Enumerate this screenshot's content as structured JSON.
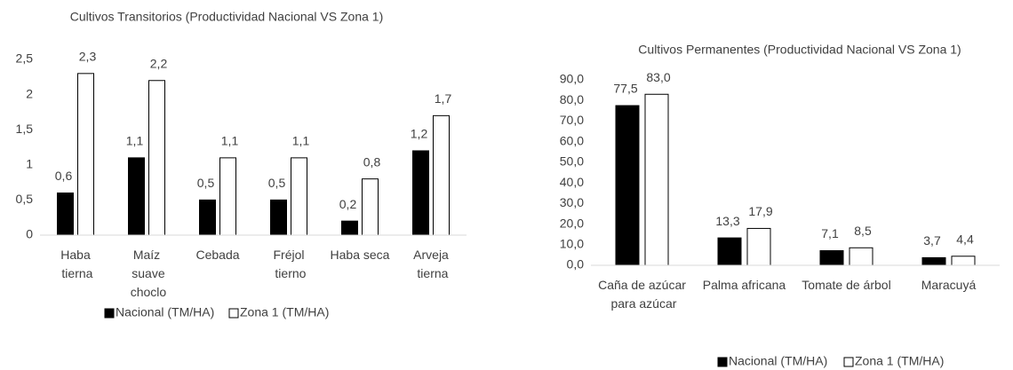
{
  "chart_data": [
    {
      "type": "bar",
      "title": "Cultivos Transitorios (Productividad Nacional VS Zona 1)",
      "categories": [
        "Haba tierna",
        "Maíz suave choclo",
        "Cebada",
        "Fréjol tierno",
        "Haba seca",
        "Arveja tierna"
      ],
      "series": [
        {
          "name": "Nacional (TM/HA)",
          "color": "#000000",
          "values": [
            0.6,
            1.1,
            0.5,
            0.5,
            0.2,
            1.2
          ],
          "value_labels": [
            "0,6",
            "1,1",
            "0,5",
            "0,5",
            "0,2",
            "1,2"
          ]
        },
        {
          "name": "Zona 1 (TM/HA)",
          "color": "#ffffff",
          "values": [
            2.3,
            2.2,
            1.1,
            1.1,
            0.8,
            1.7
          ],
          "value_labels": [
            "2,3",
            "2,2",
            "1,1",
            "1,1",
            "0,8",
            "1,7"
          ]
        }
      ],
      "ylim": [
        0,
        2.5
      ],
      "yticks": [
        0,
        {
          "value": 0.5,
          "label": "0,5"
        },
        1,
        {
          "value": 1.5,
          "label": "1,5"
        },
        2,
        {
          "value": 2.5,
          "label": "2,5"
        }
      ],
      "legend": "bottom"
    },
    {
      "type": "bar",
      "title": "Cultivos Permanentes (Productividad Nacional VS Zona 1)",
      "categories": [
        "Caña de azúcar para azúcar",
        "Palma africana",
        "Tomate de árbol",
        "Maracuyá"
      ],
      "series": [
        {
          "name": "Nacional (TM/HA)",
          "color": "#000000",
          "values": [
            77.5,
            13.3,
            7.1,
            3.7
          ],
          "value_labels": [
            "77,5",
            "13,3",
            "7,1",
            "3,7"
          ]
        },
        {
          "name": "Zona 1 (TM/HA)",
          "color": "#ffffff",
          "values": [
            83.0,
            17.9,
            8.5,
            4.4
          ],
          "value_labels": [
            "83,0",
            "17,9",
            "8,5",
            "4,4"
          ]
        }
      ],
      "ylim": [
        0,
        90
      ],
      "yticks": [
        {
          "value": 0,
          "label": "0,0"
        },
        {
          "value": 10,
          "label": "10,0"
        },
        {
          "value": 20,
          "label": "20,0"
        },
        {
          "value": 30,
          "label": "30,0"
        },
        {
          "value": 40,
          "label": "40,0"
        },
        {
          "value": 50,
          "label": "50,0"
        },
        {
          "value": 60,
          "label": "60,0"
        },
        {
          "value": 70,
          "label": "70,0"
        },
        {
          "value": 80,
          "label": "80,0"
        },
        {
          "value": 90,
          "label": "90,0"
        }
      ],
      "legend": "bottom"
    }
  ]
}
